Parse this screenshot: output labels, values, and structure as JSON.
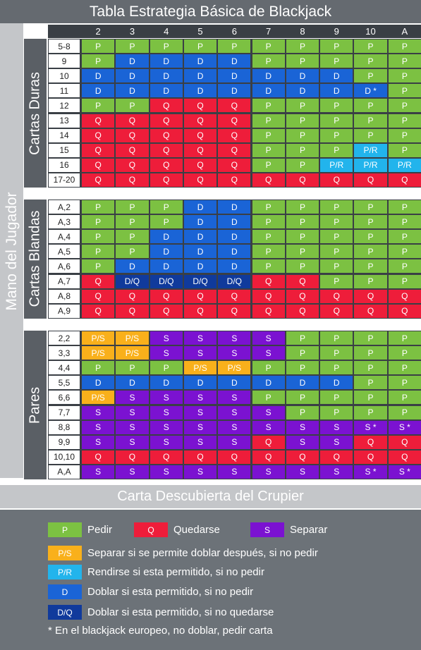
{
  "title": "Tabla Estrategia Básica de Blackjack",
  "player_axis_label": "Mano del Jugador",
  "dealer_axis_label": "Carta Descubierta del Crupier",
  "dealer_cards": [
    "2",
    "3",
    "4",
    "5",
    "6",
    "7",
    "8",
    "9",
    "10",
    "A"
  ],
  "colors": {
    "P": "#7cc142",
    "Q": "#ee1d3a",
    "D": "#1a64d6",
    "D/Q": "#103a9c",
    "S": "#7b12d1",
    "P/S": "#f9b01b",
    "P/R": "#22b4ec",
    "D *": "#1a64d6",
    "S *": "#7b12d1"
  },
  "sections": [
    {
      "name": "Cartas Duras",
      "rows": [
        {
          "hand": "5-8",
          "actions": [
            "P",
            "P",
            "P",
            "P",
            "P",
            "P",
            "P",
            "P",
            "P",
            "P"
          ]
        },
        {
          "hand": "9",
          "actions": [
            "P",
            "D",
            "D",
            "D",
            "D",
            "P",
            "P",
            "P",
            "P",
            "P"
          ]
        },
        {
          "hand": "10",
          "actions": [
            "D",
            "D",
            "D",
            "D",
            "D",
            "D",
            "D",
            "D",
            "P",
            "P"
          ]
        },
        {
          "hand": "11",
          "actions": [
            "D",
            "D",
            "D",
            "D",
            "D",
            "D",
            "D",
            "D",
            "D *",
            "P"
          ]
        },
        {
          "hand": "12",
          "actions": [
            "P",
            "P",
            "Q",
            "Q",
            "Q",
            "P",
            "P",
            "P",
            "P",
            "P"
          ]
        },
        {
          "hand": "13",
          "actions": [
            "Q",
            "Q",
            "Q",
            "Q",
            "Q",
            "P",
            "P",
            "P",
            "P",
            "P"
          ]
        },
        {
          "hand": "14",
          "actions": [
            "Q",
            "Q",
            "Q",
            "Q",
            "Q",
            "P",
            "P",
            "P",
            "P",
            "P"
          ]
        },
        {
          "hand": "15",
          "actions": [
            "Q",
            "Q",
            "Q",
            "Q",
            "Q",
            "P",
            "P",
            "P",
            "P/R",
            "P"
          ]
        },
        {
          "hand": "16",
          "actions": [
            "Q",
            "Q",
            "Q",
            "Q",
            "Q",
            "P",
            "P",
            "P/R",
            "P/R",
            "P/R"
          ]
        },
        {
          "hand": "17-20",
          "actions": [
            "Q",
            "Q",
            "Q",
            "Q",
            "Q",
            "Q",
            "Q",
            "Q",
            "Q",
            "Q"
          ]
        }
      ]
    },
    {
      "name": "Cartas Blandas",
      "rows": [
        {
          "hand": "A,2",
          "actions": [
            "P",
            "P",
            "P",
            "D",
            "D",
            "P",
            "P",
            "P",
            "P",
            "P"
          ]
        },
        {
          "hand": "A,3",
          "actions": [
            "P",
            "P",
            "P",
            "D",
            "D",
            "P",
            "P",
            "P",
            "P",
            "P"
          ]
        },
        {
          "hand": "A,4",
          "actions": [
            "P",
            "P",
            "D",
            "D",
            "D",
            "P",
            "P",
            "P",
            "P",
            "P"
          ]
        },
        {
          "hand": "A,5",
          "actions": [
            "P",
            "P",
            "D",
            "D",
            "D",
            "P",
            "P",
            "P",
            "P",
            "P"
          ]
        },
        {
          "hand": "A,6",
          "actions": [
            "P",
            "D",
            "D",
            "D",
            "D",
            "P",
            "P",
            "P",
            "P",
            "P"
          ]
        },
        {
          "hand": "A,7",
          "actions": [
            "Q",
            "D/Q",
            "D/Q",
            "D/Q",
            "D/Q",
            "Q",
            "Q",
            "P",
            "P",
            "P"
          ]
        },
        {
          "hand": "A,8",
          "actions": [
            "Q",
            "Q",
            "Q",
            "Q",
            "Q",
            "Q",
            "Q",
            "Q",
            "Q",
            "Q"
          ]
        },
        {
          "hand": "A,9",
          "actions": [
            "Q",
            "Q",
            "Q",
            "Q",
            "Q",
            "Q",
            "Q",
            "Q",
            "Q",
            "Q"
          ]
        }
      ]
    },
    {
      "name": "Pares",
      "rows": [
        {
          "hand": "2,2",
          "actions": [
            "P/S",
            "P/S",
            "S",
            "S",
            "S",
            "S",
            "P",
            "P",
            "P",
            "P"
          ]
        },
        {
          "hand": "3,3",
          "actions": [
            "P/S",
            "P/S",
            "S",
            "S",
            "S",
            "S",
            "P",
            "P",
            "P",
            "P"
          ]
        },
        {
          "hand": "4,4",
          "actions": [
            "P",
            "P",
            "P",
            "P/S",
            "P/S",
            "P",
            "P",
            "P",
            "P",
            "P"
          ]
        },
        {
          "hand": "5,5",
          "actions": [
            "D",
            "D",
            "D",
            "D",
            "D",
            "D",
            "D",
            "D",
            "P",
            "P"
          ]
        },
        {
          "hand": "6,6",
          "actions": [
            "P/S",
            "S",
            "S",
            "S",
            "S",
            "P",
            "P",
            "P",
            "P",
            "P"
          ]
        },
        {
          "hand": "7,7",
          "actions": [
            "S",
            "S",
            "S",
            "S",
            "S",
            "S",
            "P",
            "P",
            "P",
            "P"
          ]
        },
        {
          "hand": "8,8",
          "actions": [
            "S",
            "S",
            "S",
            "S",
            "S",
            "S",
            "S",
            "S",
            "S *",
            "S *"
          ]
        },
        {
          "hand": "9,9",
          "actions": [
            "S",
            "S",
            "S",
            "S",
            "S",
            "Q",
            "S",
            "S",
            "Q",
            "Q"
          ]
        },
        {
          "hand": "10,10",
          "actions": [
            "Q",
            "Q",
            "Q",
            "Q",
            "Q",
            "Q",
            "Q",
            "Q",
            "Q",
            "Q"
          ]
        },
        {
          "hand": "A,A",
          "actions": [
            "S",
            "S",
            "S",
            "S",
            "S",
            "S",
            "S",
            "S",
            "S *",
            "S *"
          ]
        }
      ]
    }
  ],
  "legend": [
    {
      "code": "P",
      "text": "Pedir"
    },
    {
      "code": "Q",
      "text": "Quedarse"
    },
    {
      "code": "S",
      "text": "Separar"
    },
    {
      "code": "P/S",
      "text": "Separar si se permite doblar después, si no pedir"
    },
    {
      "code": "P/R",
      "text": "Rendirse si esta permitido, si no pedir"
    },
    {
      "code": "D",
      "text": "Doblar si esta permitido, si no pedir"
    },
    {
      "code": "D/Q",
      "text": "Doblar si esta permitido, si no quedarse"
    }
  ],
  "footnote": "* En el blackjack europeo, no doblar, pedir carta"
}
